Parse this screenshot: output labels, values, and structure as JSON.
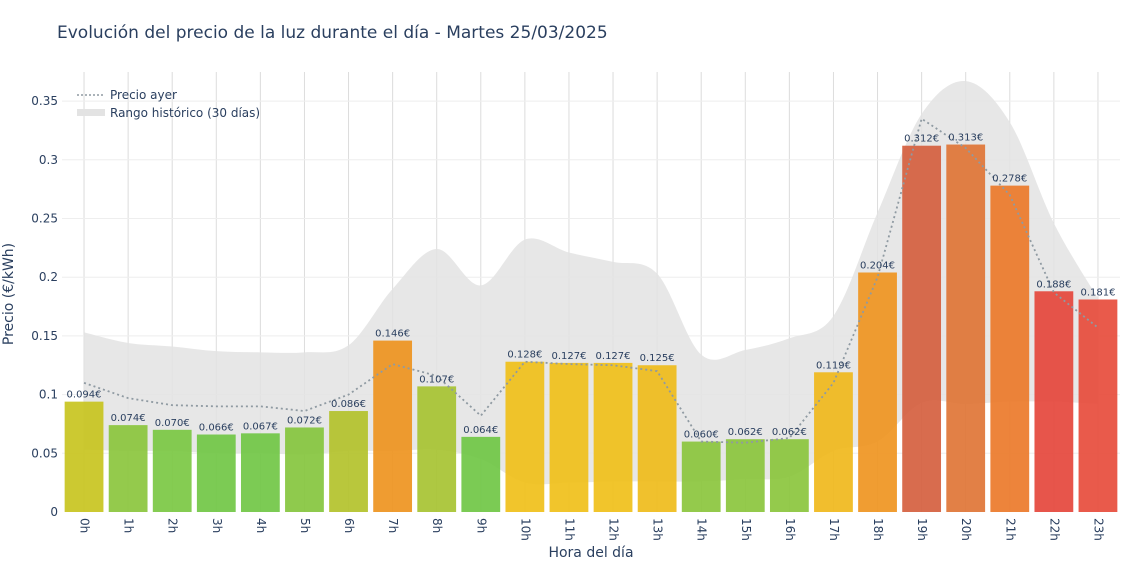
{
  "chart_data": {
    "type": "bar",
    "title": "Evolución del precio de la luz durante el día - Martes 25/03/2025",
    "xlabel": "Hora del día",
    "ylabel": "Precio (€/kWh)",
    "ylim": [
      0,
      0.385
    ],
    "yticks": [
      0,
      0.05,
      0.1,
      0.15,
      0.2,
      0.25,
      0.3,
      0.35
    ],
    "ytick_labels": [
      "0",
      "0.05",
      "0.1",
      "0.15",
      "0.2",
      "0.25",
      "0.3",
      "0.35"
    ],
    "grid": true,
    "legend_position": "top-left",
    "categories": [
      "0h",
      "1h",
      "2h",
      "3h",
      "4h",
      "5h",
      "6h",
      "7h",
      "8h",
      "9h",
      "10h",
      "11h",
      "12h",
      "13h",
      "14h",
      "15h",
      "16h",
      "17h",
      "18h",
      "19h",
      "20h",
      "21h",
      "22h",
      "23h"
    ],
    "values": [
      0.094,
      0.074,
      0.07,
      0.066,
      0.067,
      0.072,
      0.086,
      0.146,
      0.107,
      0.064,
      0.128,
      0.127,
      0.127,
      0.125,
      0.06,
      0.062,
      0.062,
      0.119,
      0.204,
      0.312,
      0.313,
      0.278,
      0.188,
      0.181
    ],
    "value_labels": [
      "0.094€",
      "0.074€",
      "0.070€",
      "0.066€",
      "0.067€",
      "0.072€",
      "0.086€",
      "0.146€",
      "0.107€",
      "0.064€",
      "0.128€",
      "0.127€",
      "0.127€",
      "0.125€",
      "0.060€",
      "0.062€",
      "0.062€",
      "0.119€",
      "0.204€",
      "0.312€",
      "0.313€",
      "0.278€",
      "0.188€",
      "0.181€"
    ],
    "bar_colors": [
      "#c8c41f",
      "#8bc63d",
      "#7bc843",
      "#71c745",
      "#71c745",
      "#86c63e",
      "#b3c22b",
      "#ee9420",
      "#a7c332",
      "#70c745",
      "#f0c01a",
      "#f0c01a",
      "#f0c01a",
      "#efbc1b",
      "#8bc63d",
      "#8bc63d",
      "#8bc63d",
      "#f0b81c",
      "#ef9521",
      "#d55f3f",
      "#df7536",
      "#ec7a2a",
      "#e5463c",
      "#e74c3c"
    ],
    "series": [
      {
        "name": "Precio ayer",
        "type": "line",
        "style": "dotted",
        "color": "#8f9aa2",
        "values": [
          0.11,
          0.097,
          0.091,
          0.09,
          0.09,
          0.086,
          0.1,
          0.126,
          0.116,
          0.082,
          0.128,
          0.126,
          0.125,
          0.12,
          0.06,
          0.059,
          0.063,
          0.11,
          0.2,
          0.335,
          0.31,
          0.27,
          0.187,
          0.157
        ]
      },
      {
        "name": "Rango histórico (30 días)",
        "type": "area-band",
        "color": "#e3e3e3",
        "min": [
          0.053,
          0.052,
          0.052,
          0.05,
          0.05,
          0.049,
          0.052,
          0.052,
          0.053,
          0.045,
          0.025,
          0.025,
          0.026,
          0.026,
          0.026,
          0.028,
          0.03,
          0.052,
          0.06,
          0.093,
          0.092,
          0.094,
          0.094,
          0.092
        ],
        "max": [
          0.153,
          0.144,
          0.141,
          0.137,
          0.136,
          0.136,
          0.142,
          0.19,
          0.224,
          0.193,
          0.232,
          0.221,
          0.213,
          0.203,
          0.134,
          0.138,
          0.148,
          0.167,
          0.255,
          0.339,
          0.367,
          0.332,
          0.246,
          0.182
        ]
      }
    ]
  }
}
